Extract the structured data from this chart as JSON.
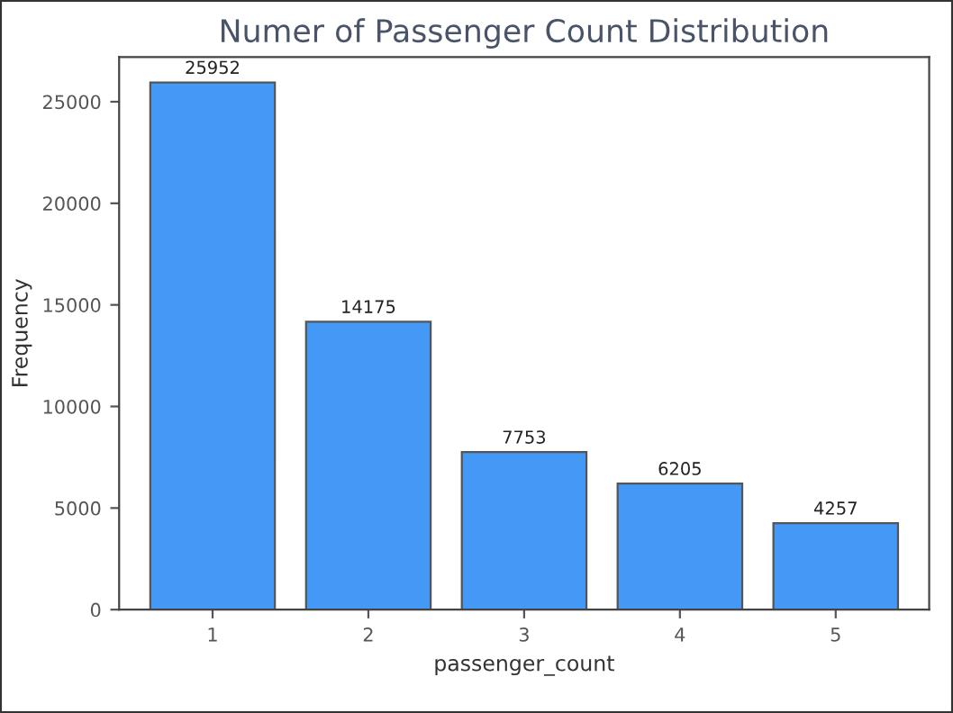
{
  "chart_data": {
    "type": "bar",
    "title": "Numer of Passenger Count Distribution",
    "xlabel": "passenger_count",
    "ylabel": "Frequency",
    "categories": [
      "1",
      "2",
      "3",
      "4",
      "5"
    ],
    "values": [
      25952,
      14175,
      7753,
      6205,
      4257
    ],
    "color": "#4499f7",
    "ylim": [
      0,
      27200
    ],
    "yticks": [
      0,
      5000,
      10000,
      15000,
      20000,
      25000
    ],
    "data_labels": true,
    "grid": false
  }
}
